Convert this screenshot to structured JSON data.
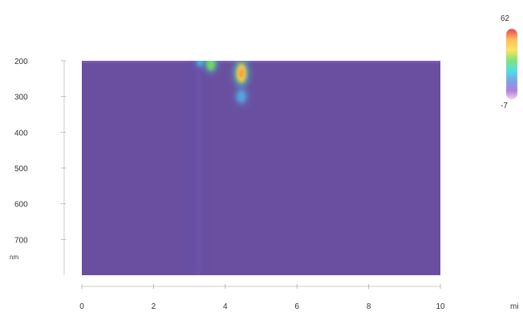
{
  "chart_data": {
    "type": "heatmap",
    "title": "",
    "xlabel": "",
    "ylabel": "",
    "x_unit": "mi",
    "y_unit": "nm",
    "xlim": [
      0,
      10
    ],
    "ylim": [
      200,
      800
    ],
    "y_reversed": true,
    "x_ticks": [
      0,
      2,
      4,
      6,
      8,
      10
    ],
    "y_ticks": [
      200,
      300,
      400,
      500,
      600,
      700
    ],
    "colorbar": {
      "min": -7,
      "max": 62,
      "position": "top-right"
    },
    "background_value": 4,
    "colors": {
      "low": "#f4c8ec",
      "background": "#6a4fa0",
      "mid_blue": "#3aa0e6",
      "cyan": "#30d8e8",
      "green": "#68e060",
      "yellow": "#ffe040",
      "red": "#e8202c"
    },
    "features": [
      {
        "x": 3.3,
        "y": 203,
        "value": 18,
        "width": 0.08,
        "height": 12
      },
      {
        "x": 3.6,
        "y": 210,
        "value": 32,
        "width": 0.14,
        "height": 18
      },
      {
        "x": 4.45,
        "y": 200,
        "value": 62,
        "width": 0.08,
        "height": 6
      },
      {
        "x": 4.45,
        "y": 235,
        "value": 45,
        "width": 0.18,
        "height": 30
      },
      {
        "x": 4.45,
        "y": 300,
        "value": 14,
        "width": 0.14,
        "height": 18
      }
    ],
    "vertical_streak": {
      "x": 3.25,
      "y_from": 200,
      "y_to": 800,
      "value": 10
    },
    "grid": false,
    "legend": "none"
  }
}
